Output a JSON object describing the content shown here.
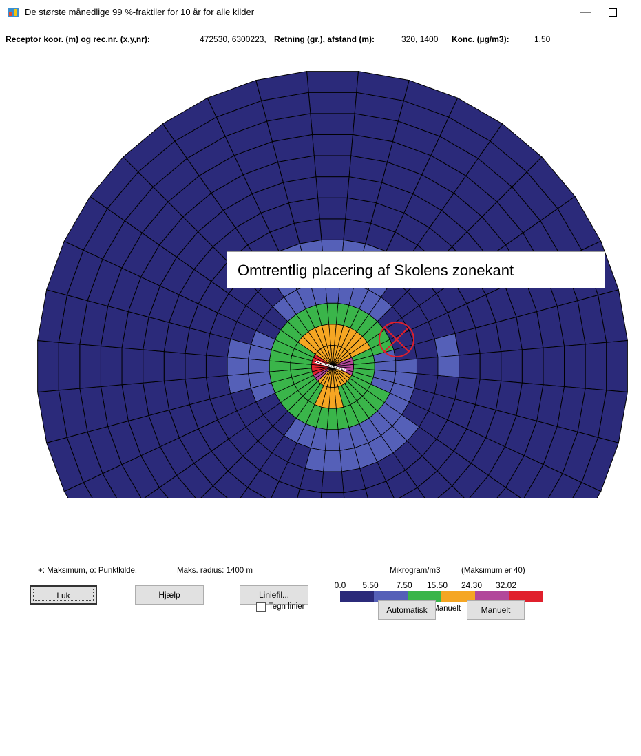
{
  "window": {
    "title": "De største månedlige 99 %-fraktiler for 10 år for alle kilder",
    "minimize_icon": "minimize-icon",
    "maximize_icon": "maximize-icon"
  },
  "info": {
    "receptor_label": "Receptor koor. (m) og rec.nr. (x,y,nr):",
    "receptor_value": "472530, 6300223,",
    "direction_label": "Retning (gr.), afstand (m):",
    "direction_value": "320, 1400",
    "conc_label": "Konc. (µg/m3):",
    "conc_value": "1.50"
  },
  "plot": {
    "annotation": "Omtrentlig placering af Skolens zonekant",
    "rings": 14,
    "sectors": 36,
    "marker": "circle-x-icon",
    "colors": {
      "c1": "#2b2a7a",
      "c2": "#5560b8",
      "c3": "#3ab54a",
      "c4": "#f5a623",
      "c5": "#b2479a",
      "c6": "#e0202c"
    }
  },
  "footer": {
    "legend_symbols": "+: Maksimum,  o: Punktkilde.",
    "max_radius": "Maks. radius:  1400 m",
    "unit_label": "Mikrogram/m3",
    "max_note": "(Maksimum er  40)",
    "scale_label": "Skala:  Manuelt",
    "tegn_linier": "Tegn linier"
  },
  "legend": {
    "ticks": [
      "0.0",
      "5.50",
      "7.50",
      "15.50",
      "24.30",
      "32.02"
    ],
    "colors": [
      "#2b2a7a",
      "#5560b8",
      "#3ab54a",
      "#f5a623",
      "#b2479a",
      "#e0202c"
    ]
  },
  "buttons": {
    "luk": "Luk",
    "hjaelp": "Hjælp",
    "liniefil": "Liniefil...",
    "automatisk": "Automatisk",
    "manuelt": "Manuelt"
  }
}
